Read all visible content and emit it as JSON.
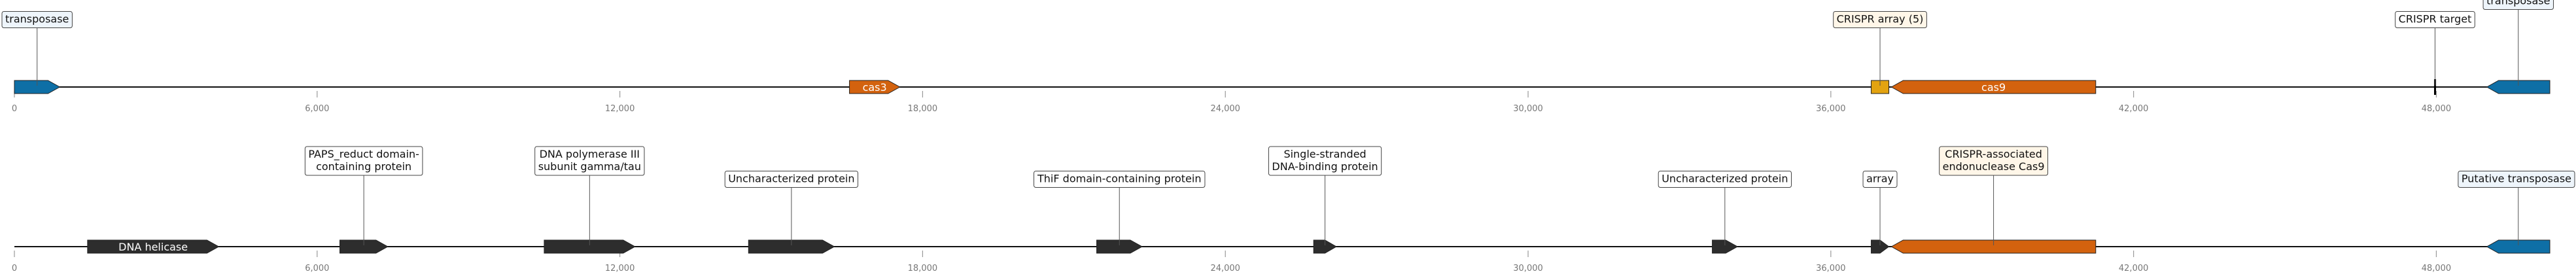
{
  "chart_data": [
    {
      "type": "gene-map",
      "range": [
        0,
        50250
      ],
      "ticks": [
        0,
        6000,
        12000,
        18000,
        24000,
        30000,
        36000,
        42000,
        48000
      ],
      "tick_labels": [
        "0",
        "6,000",
        "12,000",
        "18,000",
        "24,000",
        "30,000",
        "36,000",
        "42,000",
        "48,000"
      ],
      "features": [
        {
          "label": "transposase",
          "start": 0,
          "end": 900,
          "strand": 1,
          "color": "#0e6fa6",
          "label_pos": "above",
          "label_bg": "#eef5fb"
        },
        {
          "label": "cas3",
          "start": 16550,
          "end": 17550,
          "strand": 1,
          "color": "#d3620e",
          "label_pos": "inside",
          "label_bg": ""
        },
        {
          "label": "CRISPR array (5)",
          "start": 36800,
          "end": 37150,
          "strand": 0,
          "color": "#e3a310",
          "label_pos": "above",
          "label_bg": "#fff6e8"
        },
        {
          "label": "cas9",
          "start": 37200,
          "end": 41250,
          "strand": -1,
          "color": "#d3620e",
          "label_pos": "inside",
          "label_bg": ""
        },
        {
          "label": "CRISPR target",
          "start": 47950,
          "end": 48000,
          "strand": 0,
          "color": "#000000",
          "label_pos": "above",
          "label_bg": "#ffffff"
        },
        {
          "label": "transposase",
          "start": 49000,
          "end": 50250,
          "strand": -1,
          "color": "#0e6fa6",
          "label_pos": "above-high",
          "label_bg": "#eef5fb"
        }
      ]
    },
    {
      "type": "gene-map",
      "range": [
        0,
        50250
      ],
      "ticks": [
        0,
        6000,
        12000,
        18000,
        24000,
        30000,
        36000,
        42000,
        48000
      ],
      "tick_labels": [
        "0",
        "6,000",
        "12,000",
        "18,000",
        "24,000",
        "30,000",
        "36,000",
        "42,000",
        "48,000"
      ],
      "features": [
        {
          "label": "DNA helicase",
          "start": 1450,
          "end": 4050,
          "strand": 1,
          "color": "#2d2d2d",
          "label_pos": "inside",
          "label_bg": ""
        },
        {
          "label": "PAPS_reduct domain-\ncontaining protein",
          "start": 6450,
          "end": 7400,
          "strand": 1,
          "color": "#2d2d2d",
          "label_pos": "above-high",
          "label_bg": "#ffffff"
        },
        {
          "label": "DNA polymerase III\nsubunit gamma/tau",
          "start": 10500,
          "end": 12300,
          "strand": 1,
          "color": "#2d2d2d",
          "label_pos": "above-high",
          "label_bg": "#ffffff"
        },
        {
          "label": "Uncharacterized protein",
          "start": 14550,
          "end": 16250,
          "strand": 1,
          "color": "#2d2d2d",
          "label_pos": "above",
          "label_bg": "#ffffff"
        },
        {
          "label": "ThiF domain-containing protein",
          "start": 21450,
          "end": 22350,
          "strand": 1,
          "color": "#2d2d2d",
          "label_pos": "above",
          "label_bg": "#ffffff"
        },
        {
          "label": "Single-stranded\nDNA-binding protein",
          "start": 25750,
          "end": 26200,
          "strand": 1,
          "color": "#2d2d2d",
          "label_pos": "above-high",
          "label_bg": "#ffffff"
        },
        {
          "label": "Uncharacterized protein",
          "start": 33650,
          "end": 34150,
          "strand": 1,
          "color": "#2d2d2d",
          "label_pos": "above",
          "label_bg": "#ffffff"
        },
        {
          "label": "array",
          "start": 36800,
          "end": 37150,
          "strand": 1,
          "color": "#2d2d2d",
          "label_pos": "above",
          "label_bg": "#ffffff"
        },
        {
          "label": "CRISPR-associated\nendonuclease Cas9",
          "start": 37200,
          "end": 41250,
          "strand": -1,
          "color": "#d3620e",
          "label_pos": "above-high",
          "label_bg": "#fff6e8"
        },
        {
          "label": "Putative transposase",
          "start": 49000,
          "end": 50250,
          "strand": -1,
          "color": "#0e6fa6",
          "label_pos": "above",
          "label_bg": "#eef5fb"
        }
      ]
    }
  ]
}
